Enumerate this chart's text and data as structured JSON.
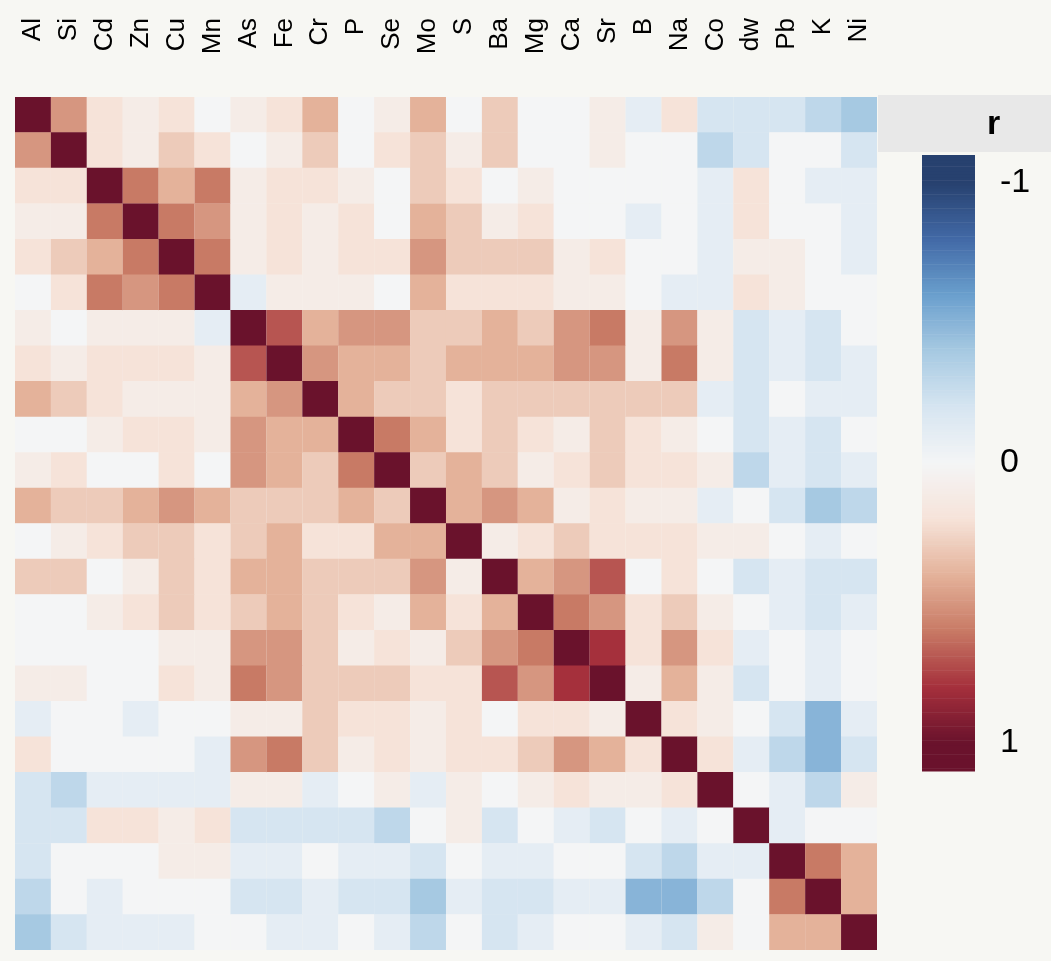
{
  "chart_data": {
    "type": "heatmap",
    "legend_title": "r",
    "tick_labels": "x",
    "categories": [
      "Al",
      "Si",
      "Cd",
      "Zn",
      "Cu",
      "Mn",
      "As",
      "Fe",
      "Cr",
      "P",
      "Se",
      "Mo",
      "S",
      "Ba",
      "Mg",
      "Ca",
      "Sr",
      "B",
      "Na",
      "Co",
      "dw",
      "Pb",
      "K",
      "Ni"
    ],
    "y_categories": [
      null,
      null,
      null,
      null,
      null,
      null,
      null,
      null,
      null,
      null,
      null,
      null,
      null,
      null,
      null,
      null,
      null,
      null,
      null,
      null,
      null,
      null,
      null,
      null
    ],
    "clim": [
      -1.1,
      1.1
    ],
    "cticks": [
      -1,
      0,
      1
    ],
    "cells": [
      [
        1,
        0.5,
        0.2,
        0.1,
        0.2,
        0,
        0.1,
        0.2,
        0.4,
        0,
        0.1,
        0.4,
        0,
        0.3,
        0,
        0,
        0.1,
        -0.1,
        0.2,
        -0.2,
        -0.2,
        -0.2,
        -0.3,
        -0.4
      ],
      [
        0.5,
        1,
        0.2,
        0.1,
        0.3,
        0.2,
        0,
        0.1,
        0.3,
        0,
        0.2,
        0.3,
        0.1,
        0.3,
        0,
        0,
        0.1,
        0,
        0,
        -0.3,
        -0.2,
        0,
        0,
        -0.2
      ],
      [
        0.2,
        0.2,
        1,
        0.6,
        0.4,
        0.6,
        0.1,
        0.2,
        0.2,
        0.1,
        0,
        0.3,
        0.2,
        0,
        0.1,
        0,
        0,
        0,
        0,
        -0.1,
        0.2,
        0,
        -0.1,
        -0.1
      ],
      [
        0.1,
        0.1,
        0.6,
        1,
        0.6,
        0.5,
        0.1,
        0.2,
        0.1,
        0.2,
        0,
        0.4,
        0.3,
        0.1,
        0.2,
        0,
        0,
        -0.1,
        0,
        -0.1,
        0.2,
        0,
        0,
        -0.1
      ],
      [
        0.2,
        0.3,
        0.4,
        0.6,
        1,
        0.6,
        0.1,
        0.2,
        0.1,
        0.2,
        0.2,
        0.5,
        0.3,
        0.3,
        0.3,
        0.1,
        0.2,
        0,
        0,
        -0.1,
        0.1,
        0.1,
        0,
        -0.1
      ],
      [
        0,
        0.2,
        0.6,
        0.5,
        0.6,
        1,
        -0.1,
        0.1,
        0.1,
        0.1,
        0,
        0.4,
        0.2,
        0.2,
        0.2,
        0.1,
        0.1,
        0,
        -0.1,
        -0.1,
        0.2,
        0.1,
        0,
        0
      ],
      [
        0.1,
        0,
        0.1,
        0.1,
        0.1,
        -0.1,
        1,
        0.7,
        0.4,
        0.5,
        0.5,
        0.3,
        0.3,
        0.4,
        0.3,
        0.5,
        0.6,
        0.1,
        0.5,
        0.1,
        -0.2,
        -0.1,
        -0.2,
        0
      ],
      [
        0.2,
        0.1,
        0.2,
        0.2,
        0.2,
        0.1,
        0.7,
        1,
        0.5,
        0.4,
        0.4,
        0.3,
        0.4,
        0.4,
        0.4,
        0.5,
        0.5,
        0.1,
        0.6,
        0.1,
        -0.2,
        -0.1,
        -0.2,
        -0.1
      ],
      [
        0.4,
        0.3,
        0.2,
        0.1,
        0.1,
        0.1,
        0.4,
        0.5,
        1,
        0.4,
        0.3,
        0.3,
        0.2,
        0.3,
        0.3,
        0.3,
        0.3,
        0.3,
        0.3,
        -0.1,
        -0.2,
        0,
        -0.1,
        -0.1
      ],
      [
        0,
        0,
        0.1,
        0.2,
        0.2,
        0.1,
        0.5,
        0.4,
        0.4,
        1,
        0.6,
        0.4,
        0.2,
        0.3,
        0.2,
        0.1,
        0.3,
        0.2,
        0.1,
        0,
        -0.2,
        -0.1,
        -0.2,
        0
      ],
      [
        0.1,
        0.2,
        0,
        0,
        0.2,
        0,
        0.5,
        0.4,
        0.3,
        0.6,
        1,
        0.3,
        0.4,
        0.3,
        0.1,
        0.2,
        0.3,
        0.2,
        0.2,
        0.1,
        -0.3,
        -0.1,
        -0.2,
        -0.1
      ],
      [
        0.4,
        0.3,
        0.3,
        0.4,
        0.5,
        0.4,
        0.3,
        0.3,
        0.3,
        0.4,
        0.3,
        1,
        0.4,
        0.5,
        0.4,
        0.1,
        0.2,
        0.1,
        0.1,
        -0.1,
        0,
        -0.2,
        -0.4,
        -0.3
      ],
      [
        0,
        0.1,
        0.2,
        0.3,
        0.3,
        0.2,
        0.3,
        0.4,
        0.2,
        0.2,
        0.4,
        0.4,
        1,
        0.1,
        0.2,
        0.3,
        0.2,
        0.2,
        0.2,
        0.1,
        0.1,
        0,
        -0.1,
        0
      ],
      [
        0.3,
        0.3,
        0,
        0.1,
        0.3,
        0.2,
        0.4,
        0.4,
        0.3,
        0.3,
        0.3,
        0.5,
        0.1,
        1,
        0.4,
        0.5,
        0.7,
        0,
        0.2,
        0,
        -0.2,
        -0.1,
        -0.2,
        -0.2
      ],
      [
        0,
        0,
        0.1,
        0.2,
        0.3,
        0.2,
        0.3,
        0.4,
        0.3,
        0.2,
        0.1,
        0.4,
        0.2,
        0.4,
        1,
        0.6,
        0.5,
        0.2,
        0.3,
        0.1,
        0,
        -0.1,
        -0.2,
        -0.1
      ],
      [
        0,
        0,
        0,
        0,
        0.1,
        0.1,
        0.5,
        0.5,
        0.3,
        0.1,
        0.2,
        0.1,
        0.3,
        0.5,
        0.6,
        1,
        0.8,
        0.2,
        0.5,
        0.2,
        -0.1,
        0,
        -0.1,
        0
      ],
      [
        0.1,
        0.1,
        0,
        0,
        0.2,
        0.1,
        0.6,
        0.5,
        0.3,
        0.3,
        0.3,
        0.2,
        0.2,
        0.7,
        0.5,
        0.8,
        1,
        0.1,
        0.4,
        0.1,
        -0.2,
        0,
        -0.1,
        0
      ],
      [
        -0.1,
        0,
        0,
        -0.1,
        0,
        0,
        0.1,
        0.1,
        0.3,
        0.2,
        0.2,
        0.1,
        0.2,
        0,
        0.2,
        0.2,
        0.1,
        1,
        0.2,
        0.1,
        0,
        -0.2,
        -0.5,
        -0.1
      ],
      [
        0.2,
        0,
        0,
        0,
        0,
        -0.1,
        0.5,
        0.6,
        0.3,
        0.1,
        0.2,
        0.1,
        0.2,
        0.2,
        0.3,
        0.5,
        0.4,
        0.2,
        1,
        0.2,
        -0.1,
        -0.3,
        -0.5,
        -0.2
      ],
      [
        -0.2,
        -0.3,
        -0.1,
        -0.1,
        -0.1,
        -0.1,
        0.1,
        0.1,
        -0.1,
        0,
        0.1,
        -0.1,
        0.1,
        0,
        0.1,
        0.2,
        0.1,
        0.1,
        0.2,
        1,
        0,
        -0.1,
        -0.3,
        0.1
      ],
      [
        -0.2,
        -0.2,
        0.2,
        0.2,
        0.1,
        0.2,
        -0.2,
        -0.2,
        -0.2,
        -0.2,
        -0.3,
        0,
        0.1,
        -0.2,
        0,
        -0.1,
        -0.2,
        0,
        -0.1,
        0,
        1,
        -0.1,
        0,
        0
      ],
      [
        -0.2,
        0,
        0,
        0,
        0.1,
        0.1,
        -0.1,
        -0.1,
        0,
        -0.1,
        -0.1,
        -0.2,
        0,
        -0.1,
        -0.1,
        0,
        0,
        -0.2,
        -0.3,
        -0.1,
        -0.1,
        1,
        0.6,
        0.4
      ],
      [
        -0.3,
        0,
        -0.1,
        0,
        0,
        0,
        -0.2,
        -0.2,
        -0.1,
        -0.2,
        -0.2,
        -0.4,
        -0.1,
        -0.2,
        -0.2,
        -0.1,
        -0.1,
        -0.5,
        -0.5,
        -0.3,
        0,
        0.6,
        1,
        0.4
      ],
      [
        -0.4,
        -0.2,
        -0.1,
        -0.1,
        -0.1,
        0,
        0,
        -0.1,
        -0.1,
        0,
        -0.1,
        -0.3,
        0,
        -0.2,
        -0.1,
        0,
        0,
        -0.1,
        -0.2,
        0.1,
        0,
        0.4,
        0.4,
        1
      ]
    ]
  }
}
